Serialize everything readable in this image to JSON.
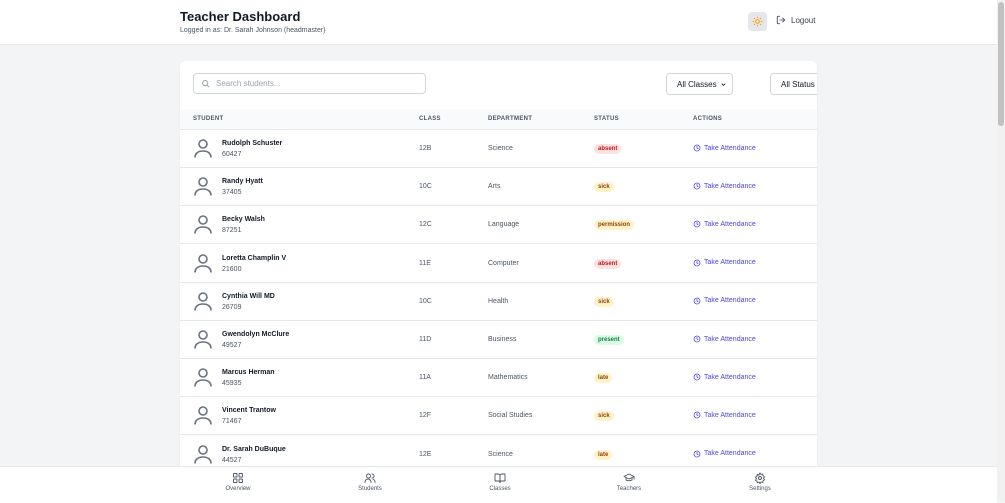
{
  "header": {
    "title": "Teacher Dashboard",
    "subtitle": "Logged in as: Dr. Sarah Johnson (headmaster)",
    "logout_label": "Logout"
  },
  "search": {
    "placeholder": "Search students..."
  },
  "filters": {
    "class_selected": "All Classes",
    "status_selected": "All Status"
  },
  "table": {
    "headers": {
      "student": "STUDENT",
      "class": "CLASS",
      "department": "DEPARTMENT",
      "status": "STATUS",
      "actions": "ACTIONS"
    },
    "action_label": "Take Attendance",
    "rows": [
      {
        "name": "Rudolph Schuster",
        "id": "60427",
        "class": "12B",
        "department": "Science",
        "status": "absent"
      },
      {
        "name": "Randy Hyatt",
        "id": "37405",
        "class": "10C",
        "department": "Arts",
        "status": "sick"
      },
      {
        "name": "Becky Walsh",
        "id": "87251",
        "class": "12C",
        "department": "Language",
        "status": "permission"
      },
      {
        "name": "Loretta Champlin V",
        "id": "21600",
        "class": "11E",
        "department": "Computer",
        "status": "absent"
      },
      {
        "name": "Cynthia Will MD",
        "id": "26709",
        "class": "10C",
        "department": "Health",
        "status": "sick"
      },
      {
        "name": "Gwendolyn McClure",
        "id": "49527",
        "class": "11D",
        "department": "Business",
        "status": "present"
      },
      {
        "name": "Marcus Herman",
        "id": "45935",
        "class": "11A",
        "department": "Mathematics",
        "status": "late"
      },
      {
        "name": "Vincent Trantow",
        "id": "71467",
        "class": "12F",
        "department": "Social Studies",
        "status": "sick"
      },
      {
        "name": "Dr. Sarah DuBuque",
        "id": "44527",
        "class": "12E",
        "department": "Science",
        "status": "late"
      }
    ]
  },
  "status_colors": {
    "absent": {
      "bg": "#fee2e2",
      "fg": "#b91c1c"
    },
    "sick": {
      "bg": "#fef3c7",
      "fg": "#92400e"
    },
    "permission": {
      "bg": "#fef3c7",
      "fg": "#92400e"
    },
    "present": {
      "bg": "#dcfce7",
      "fg": "#15803d"
    },
    "late": {
      "bg": "#fef3c7",
      "fg": "#92400e"
    }
  },
  "nav": {
    "items": [
      {
        "label": "Overview",
        "icon": "grid-icon"
      },
      {
        "label": "Students",
        "icon": "users-icon"
      },
      {
        "label": "Classes",
        "icon": "book-icon"
      },
      {
        "label": "Teachers",
        "icon": "graduation-cap-icon"
      },
      {
        "label": "Settings",
        "icon": "gear-icon"
      }
    ]
  },
  "colors": {
    "accent": "#4f46e5",
    "theme_icon": "#f59e0b"
  }
}
